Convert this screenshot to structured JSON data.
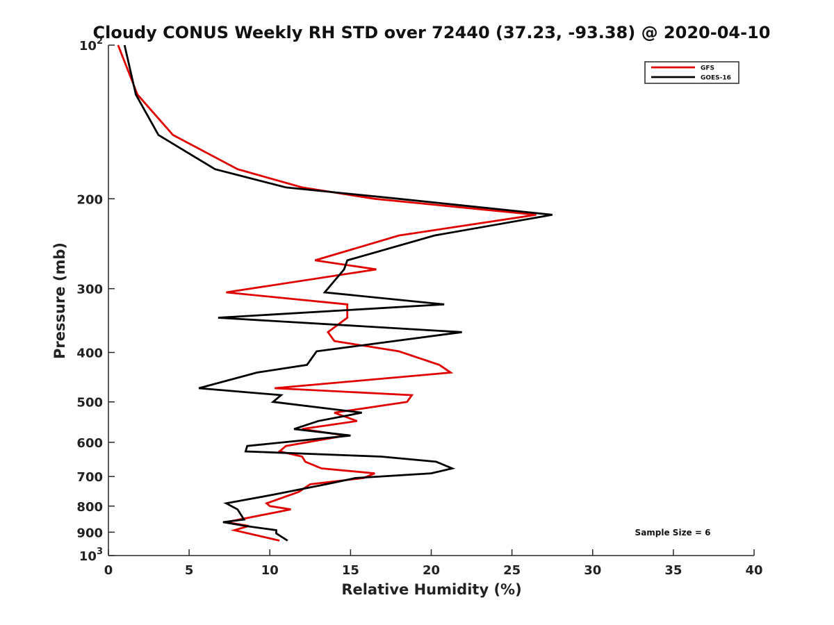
{
  "chart_data": {
    "type": "line",
    "title": "Cloudy CONUS Weekly RH STD over 72440 (37.23, -93.38) @ 2020-04-10",
    "xlabel": "Relative Humidity (%)",
    "ylabel": "Pressure (mb)",
    "xlim": [
      0,
      40
    ],
    "ylim": [
      100,
      1000
    ],
    "y_scale": "log",
    "y_reversed": true,
    "x_ticks": [
      0,
      5,
      10,
      15,
      20,
      25,
      30,
      35,
      40
    ],
    "x_tick_labels": [
      "0",
      "5",
      "10",
      "15",
      "20",
      "25",
      "30",
      "35",
      "40"
    ],
    "y_ticks": [
      100,
      200,
      300,
      400,
      500,
      600,
      700,
      800,
      900,
      1000
    ],
    "y_tick_labels": [
      "10^2",
      "200",
      "300",
      "400",
      "500",
      "600",
      "700",
      "800",
      "900",
      "10^3"
    ],
    "grid": false,
    "legend_position": "top-right",
    "annotation": "Sample Size = 6",
    "series": [
      {
        "name": "GFS",
        "color": "#e00000",
        "points": [
          [
            0.6,
            100
          ],
          [
            1.8,
            125
          ],
          [
            4.0,
            150
          ],
          [
            8.0,
            175
          ],
          [
            12.0,
            190
          ],
          [
            16.5,
            200
          ],
          [
            26.5,
            215
          ],
          [
            18.0,
            236
          ],
          [
            12.8,
            264
          ],
          [
            16.6,
            275
          ],
          [
            7.3,
            305
          ],
          [
            14.8,
            322
          ],
          [
            14.8,
            342
          ],
          [
            13.6,
            365
          ],
          [
            14.0,
            380
          ],
          [
            18.0,
            398
          ],
          [
            20.5,
            423
          ],
          [
            21.2,
            438
          ],
          [
            10.3,
            470
          ],
          [
            18.8,
            485
          ],
          [
            18.5,
            500
          ],
          [
            14.0,
            525
          ],
          [
            15.4,
            545
          ],
          [
            12.0,
            565
          ],
          [
            14.7,
            582
          ],
          [
            11.0,
            610
          ],
          [
            10.6,
            625
          ],
          [
            12.0,
            640
          ],
          [
            12.2,
            655
          ],
          [
            13.2,
            675
          ],
          [
            16.5,
            690
          ],
          [
            15.8,
            705
          ],
          [
            12.5,
            725
          ],
          [
            11.8,
            750
          ],
          [
            9.8,
            790
          ],
          [
            10.0,
            800
          ],
          [
            11.3,
            812
          ],
          [
            7.3,
            860
          ],
          [
            8.7,
            875
          ],
          [
            7.8,
            892
          ],
          [
            10.6,
            935
          ]
        ]
      },
      {
        "name": "GOES-16",
        "color": "#000000",
        "points": [
          [
            1.0,
            100
          ],
          [
            1.7,
            125
          ],
          [
            3.1,
            150
          ],
          [
            6.6,
            175
          ],
          [
            11.0,
            190
          ],
          [
            18.0,
            200
          ],
          [
            27.5,
            215
          ],
          [
            20.2,
            236
          ],
          [
            14.8,
            264
          ],
          [
            14.6,
            275
          ],
          [
            13.4,
            305
          ],
          [
            20.8,
            322
          ],
          [
            6.8,
            342
          ],
          [
            21.9,
            365
          ],
          [
            12.9,
            398
          ],
          [
            12.3,
            423
          ],
          [
            9.2,
            438
          ],
          [
            5.6,
            470
          ],
          [
            10.7,
            485
          ],
          [
            10.2,
            500
          ],
          [
            15.7,
            525
          ],
          [
            13.0,
            545
          ],
          [
            11.5,
            565
          ],
          [
            15.0,
            582
          ],
          [
            8.6,
            610
          ],
          [
            8.5,
            625
          ],
          [
            16.9,
            640
          ],
          [
            20.3,
            655
          ],
          [
            21.3,
            675
          ],
          [
            20.0,
            690
          ],
          [
            15.3,
            705
          ],
          [
            13.5,
            725
          ],
          [
            10.2,
            760
          ],
          [
            7.3,
            790
          ],
          [
            8.0,
            812
          ],
          [
            8.4,
            850
          ],
          [
            7.1,
            860
          ],
          [
            8.5,
            875
          ],
          [
            10.4,
            892
          ],
          [
            10.4,
            905
          ],
          [
            11.1,
            935
          ]
        ]
      }
    ]
  }
}
